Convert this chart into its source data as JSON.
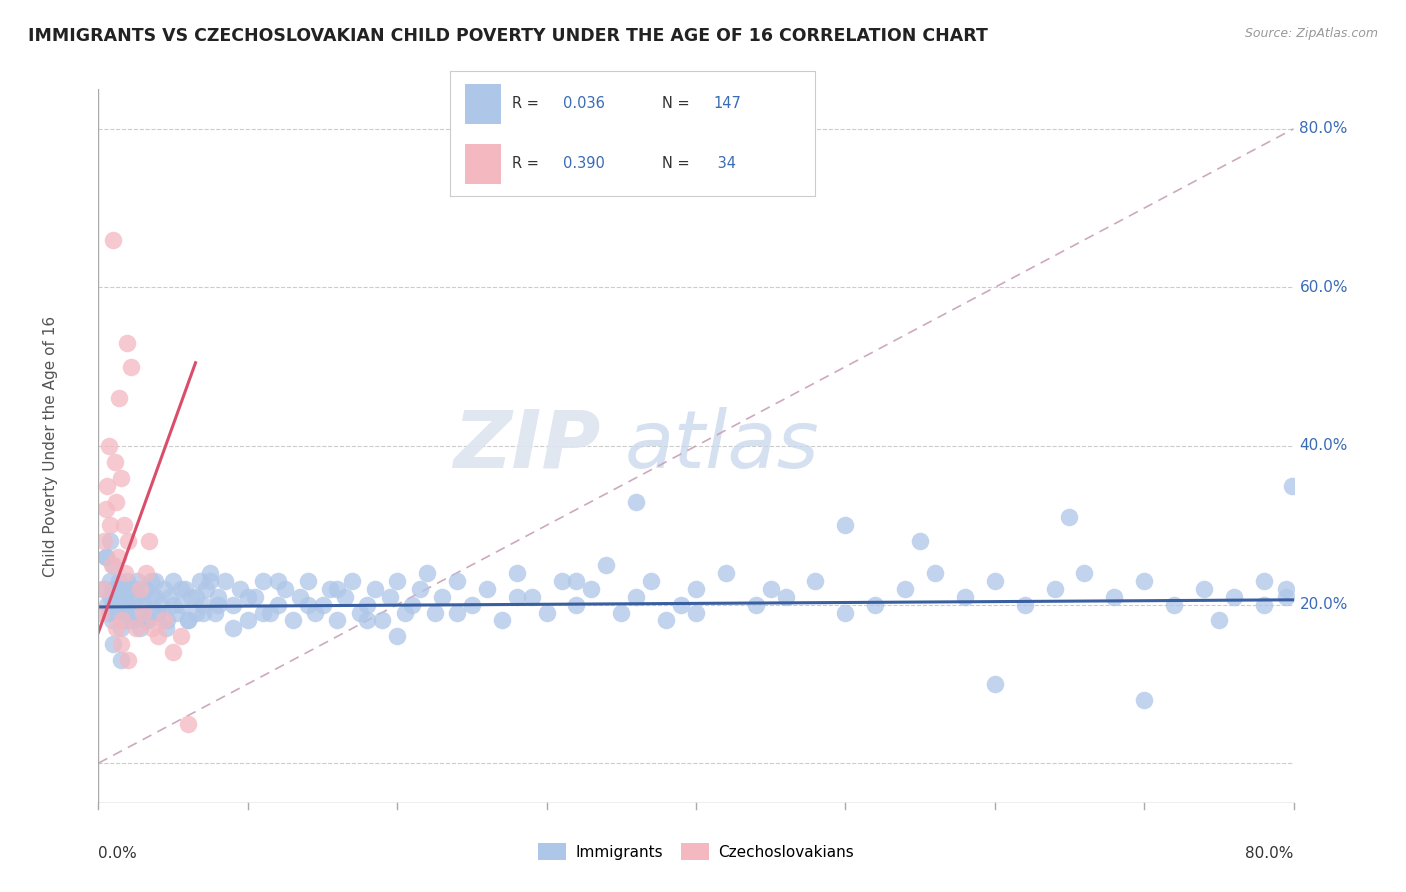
{
  "title": "IMMIGRANTS VS CZECHOSLOVAKIAN CHILD POVERTY UNDER THE AGE OF 16 CORRELATION CHART",
  "source": "Source: ZipAtlas.com",
  "ylabel": "Child Poverty Under the Age of 16",
  "xmin": 0.0,
  "xmax": 0.8,
  "ymin": -0.05,
  "ymax": 0.85,
  "ytick_positions": [
    0.0,
    0.2,
    0.4,
    0.6,
    0.8
  ],
  "ytick_labels": [
    "",
    "20.0%",
    "40.0%",
    "60.0%",
    "80.0%"
  ],
  "blue_color": "#aec6e8",
  "pink_color": "#f4b8c1",
  "line_blue": "#3a5fa0",
  "line_pink": "#d94f6a",
  "line_dashed_color": "#c8a0b8",
  "watermark_zip": "ZIP",
  "watermark_atlas": "atlas",
  "immigrants_x": [
    0.003,
    0.005,
    0.006,
    0.007,
    0.008,
    0.008,
    0.009,
    0.01,
    0.01,
    0.011,
    0.012,
    0.013,
    0.014,
    0.015,
    0.015,
    0.016,
    0.017,
    0.018,
    0.019,
    0.02,
    0.022,
    0.023,
    0.025,
    0.026,
    0.028,
    0.03,
    0.032,
    0.034,
    0.036,
    0.038,
    0.04,
    0.042,
    0.044,
    0.046,
    0.048,
    0.05,
    0.052,
    0.055,
    0.058,
    0.06,
    0.062,
    0.065,
    0.068,
    0.07,
    0.072,
    0.075,
    0.078,
    0.08,
    0.085,
    0.09,
    0.095,
    0.1,
    0.105,
    0.11,
    0.115,
    0.12,
    0.125,
    0.13,
    0.135,
    0.14,
    0.145,
    0.15,
    0.155,
    0.16,
    0.165,
    0.17,
    0.175,
    0.18,
    0.185,
    0.19,
    0.195,
    0.2,
    0.205,
    0.21,
    0.215,
    0.22,
    0.225,
    0.23,
    0.24,
    0.25,
    0.26,
    0.27,
    0.28,
    0.29,
    0.3,
    0.31,
    0.32,
    0.33,
    0.34,
    0.35,
    0.36,
    0.37,
    0.38,
    0.39,
    0.4,
    0.42,
    0.44,
    0.46,
    0.48,
    0.5,
    0.52,
    0.54,
    0.56,
    0.58,
    0.6,
    0.62,
    0.64,
    0.66,
    0.68,
    0.7,
    0.72,
    0.74,
    0.76,
    0.78,
    0.795,
    0.005,
    0.008,
    0.01,
    0.012,
    0.015,
    0.018,
    0.02,
    0.022,
    0.025,
    0.028,
    0.03,
    0.032,
    0.035,
    0.038,
    0.04,
    0.045,
    0.05,
    0.055,
    0.06,
    0.065,
    0.07,
    0.075,
    0.08,
    0.09,
    0.1,
    0.11,
    0.12,
    0.14,
    0.16,
    0.18,
    0.2,
    0.24,
    0.28,
    0.32,
    0.36,
    0.4,
    0.45,
    0.5,
    0.55,
    0.6,
    0.65,
    0.7,
    0.75,
    0.78,
    0.795,
    0.799,
    0.01,
    0.015
  ],
  "immigrants_y": [
    0.22,
    0.26,
    0.2,
    0.19,
    0.23,
    0.21,
    0.18,
    0.25,
    0.2,
    0.22,
    0.19,
    0.21,
    0.23,
    0.2,
    0.22,
    0.18,
    0.21,
    0.19,
    0.23,
    0.2,
    0.22,
    0.18,
    0.21,
    0.23,
    0.19,
    0.2,
    0.22,
    0.18,
    0.21,
    0.23,
    0.19,
    0.2,
    0.22,
    0.18,
    0.21,
    0.23,
    0.19,
    0.2,
    0.22,
    0.18,
    0.21,
    0.19,
    0.23,
    0.2,
    0.22,
    0.24,
    0.19,
    0.21,
    0.23,
    0.2,
    0.22,
    0.18,
    0.21,
    0.23,
    0.19,
    0.2,
    0.22,
    0.18,
    0.21,
    0.23,
    0.19,
    0.2,
    0.22,
    0.18,
    0.21,
    0.23,
    0.19,
    0.2,
    0.22,
    0.18,
    0.21,
    0.23,
    0.19,
    0.2,
    0.22,
    0.24,
    0.19,
    0.21,
    0.23,
    0.2,
    0.22,
    0.18,
    0.24,
    0.21,
    0.19,
    0.23,
    0.2,
    0.22,
    0.25,
    0.19,
    0.21,
    0.23,
    0.18,
    0.2,
    0.22,
    0.24,
    0.2,
    0.21,
    0.23,
    0.19,
    0.2,
    0.22,
    0.24,
    0.21,
    0.23,
    0.2,
    0.22,
    0.24,
    0.21,
    0.23,
    0.2,
    0.22,
    0.21,
    0.23,
    0.21,
    0.26,
    0.28,
    0.22,
    0.2,
    0.17,
    0.19,
    0.18,
    0.21,
    0.22,
    0.17,
    0.2,
    0.18,
    0.23,
    0.21,
    0.19,
    0.17,
    0.2,
    0.22,
    0.18,
    0.21,
    0.19,
    0.23,
    0.2,
    0.17,
    0.21,
    0.19,
    0.23,
    0.2,
    0.22,
    0.18,
    0.16,
    0.19,
    0.21,
    0.23,
    0.33,
    0.19,
    0.22,
    0.3,
    0.28,
    0.1,
    0.31,
    0.08,
    0.18,
    0.2,
    0.22,
    0.35,
    0.15,
    0.13
  ],
  "czech_x": [
    0.002,
    0.003,
    0.004,
    0.005,
    0.006,
    0.007,
    0.008,
    0.009,
    0.01,
    0.011,
    0.012,
    0.013,
    0.014,
    0.015,
    0.016,
    0.017,
    0.018,
    0.019,
    0.02,
    0.022,
    0.025,
    0.028,
    0.03,
    0.032,
    0.034,
    0.036,
    0.04,
    0.044,
    0.05,
    0.055,
    0.06,
    0.012,
    0.015,
    0.02
  ],
  "czech_y": [
    0.19,
    0.22,
    0.28,
    0.32,
    0.35,
    0.4,
    0.3,
    0.25,
    0.66,
    0.38,
    0.33,
    0.26,
    0.46,
    0.36,
    0.18,
    0.3,
    0.24,
    0.53,
    0.28,
    0.5,
    0.17,
    0.22,
    0.19,
    0.24,
    0.28,
    0.17,
    0.16,
    0.18,
    0.14,
    0.16,
    0.05,
    0.17,
    0.15,
    0.13
  ],
  "imm_trend_x": [
    0.0,
    0.8
  ],
  "imm_trend_y": [
    0.197,
    0.206
  ],
  "cz_trend_x": [
    0.0,
    0.065
  ],
  "cz_trend_y": [
    0.165,
    0.505
  ]
}
